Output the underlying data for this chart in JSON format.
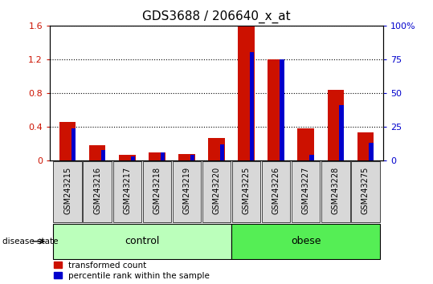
{
  "title": "GDS3688 / 206640_x_at",
  "samples": [
    "GSM243215",
    "GSM243216",
    "GSM243217",
    "GSM243218",
    "GSM243219",
    "GSM243220",
    "GSM243225",
    "GSM243226",
    "GSM243227",
    "GSM243228",
    "GSM243275"
  ],
  "transformed_count": [
    0.46,
    0.18,
    0.07,
    0.1,
    0.08,
    0.27,
    1.6,
    1.2,
    0.38,
    0.84,
    0.33
  ],
  "percentile_right": [
    24,
    8,
    3,
    6,
    4,
    12,
    80,
    75,
    4,
    41,
    13
  ],
  "groups": [
    {
      "label": "control",
      "indices": [
        0,
        1,
        2,
        3,
        4,
        5
      ],
      "color": "#bbffbb"
    },
    {
      "label": "obese",
      "indices": [
        6,
        7,
        8,
        9,
        10
      ],
      "color": "#55ee55"
    }
  ],
  "ylim_left": [
    0,
    1.6
  ],
  "ylim_right": [
    0,
    100
  ],
  "yticks_left": [
    0,
    0.4,
    0.8,
    1.2,
    1.6
  ],
  "yticks_right": [
    0,
    25,
    50,
    75,
    100
  ],
  "bar_color_red": "#cc1100",
  "bar_color_blue": "#0000cc",
  "bg_color": "#d8d8d8",
  "title_fontsize": 11,
  "tick_label_fontsize": 7,
  "axis_tick_fontsize": 8,
  "axis_label_color_left": "#cc1100",
  "axis_label_color_right": "#0000cc",
  "red_bar_width": 0.55,
  "blue_bar_width": 0.15
}
